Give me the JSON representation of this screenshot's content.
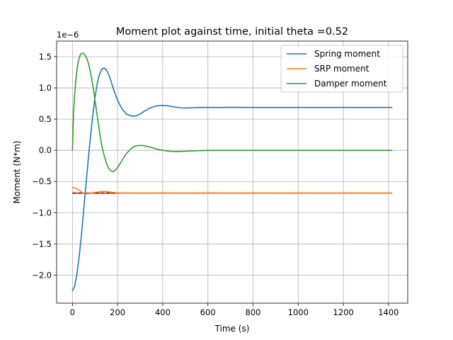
{
  "chart_data": {
    "type": "line",
    "title": "Moment plot against time, initial theta =0.52",
    "xlabel": "Time (s)",
    "ylabel": "Moment (N*m)",
    "y_offset_label": "1e−6",
    "xlim": [
      -70,
      1485
    ],
    "ylim": [
      -2.45,
      1.75
    ],
    "x_ticks": [
      0,
      200,
      400,
      600,
      800,
      1000,
      1200,
      1400
    ],
    "x_tick_labels": [
      "0",
      "200",
      "400",
      "600",
      "800",
      "1000",
      "1200",
      "1400"
    ],
    "y_ticks": [
      -2.0,
      -1.5,
      -1.0,
      -0.5,
      0.0,
      0.5,
      1.0,
      1.5
    ],
    "y_tick_labels": [
      "−2.0",
      "−1.5",
      "−1.0",
      "−0.5",
      "0.0",
      "0.5",
      "1.0",
      "1.5"
    ],
    "grid": true,
    "legend_position": "upper-right",
    "series": [
      {
        "name": "Spring moment",
        "color": "#1f77b4",
        "x": [
          0,
          10,
          20,
          30,
          40,
          50,
          60,
          70,
          80,
          90,
          100,
          110,
          120,
          130,
          140,
          150,
          160,
          170,
          180,
          190,
          200,
          220,
          240,
          260,
          280,
          300,
          320,
          340,
          360,
          380,
          400,
          420,
          440,
          460,
          480,
          500,
          520,
          540,
          560,
          580,
          600,
          650,
          700,
          800,
          900,
          1000,
          1100,
          1200,
          1300,
          1415
        ],
        "y": [
          -2.25,
          -2.18,
          -1.98,
          -1.7,
          -1.35,
          -0.95,
          -0.55,
          -0.15,
          0.22,
          0.55,
          0.85,
          1.07,
          1.22,
          1.3,
          1.32,
          1.29,
          1.22,
          1.12,
          1.0,
          0.9,
          0.8,
          0.66,
          0.58,
          0.55,
          0.55,
          0.58,
          0.63,
          0.67,
          0.7,
          0.715,
          0.72,
          0.715,
          0.7,
          0.69,
          0.68,
          0.678,
          0.68,
          0.683,
          0.685,
          0.686,
          0.686,
          0.687,
          0.688,
          0.687,
          0.686,
          0.686,
          0.686,
          0.686,
          0.686,
          0.686
        ]
      },
      {
        "name": "SRP moment",
        "color": "#ff7f0e",
        "x": [
          0,
          10,
          20,
          30,
          40,
          50,
          60,
          70,
          80,
          90,
          100,
          110,
          120,
          130,
          140,
          150,
          160,
          170,
          180,
          190,
          200,
          220,
          240,
          260,
          280,
          300,
          350,
          400,
          450,
          500,
          600,
          700,
          800,
          900,
          1000,
          1100,
          1200,
          1300,
          1415
        ],
        "y": [
          -0.6,
          -0.6,
          -0.62,
          -0.64,
          -0.67,
          -0.685,
          -0.695,
          -0.695,
          -0.69,
          -0.68,
          -0.675,
          -0.67,
          -0.665,
          -0.66,
          -0.66,
          -0.66,
          -0.665,
          -0.67,
          -0.675,
          -0.68,
          -0.682,
          -0.685,
          -0.686,
          -0.686,
          -0.686,
          -0.686,
          -0.686,
          -0.686,
          -0.686,
          -0.686,
          -0.686,
          -0.686,
          -0.686,
          -0.686,
          -0.686,
          -0.686,
          -0.686,
          -0.686,
          -0.686
        ]
      },
      {
        "name": "Damper moment",
        "color": "#2ca02c",
        "x": [
          0,
          5,
          10,
          15,
          20,
          25,
          30,
          35,
          40,
          45,
          50,
          55,
          60,
          65,
          70,
          80,
          90,
          100,
          110,
          120,
          130,
          140,
          150,
          160,
          170,
          180,
          190,
          200,
          210,
          220,
          230,
          240,
          250,
          260,
          270,
          280,
          290,
          300,
          310,
          320,
          330,
          340,
          350,
          360,
          370,
          380,
          400,
          420,
          440,
          460,
          480,
          500,
          550,
          600,
          650,
          700,
          800,
          900,
          1000,
          1100,
          1200,
          1300,
          1415
        ],
        "y": [
          0.0,
          0.6,
          0.9,
          1.12,
          1.28,
          1.4,
          1.48,
          1.53,
          1.55,
          1.555,
          1.55,
          1.53,
          1.5,
          1.46,
          1.4,
          1.25,
          1.05,
          0.8,
          0.55,
          0.3,
          0.08,
          -0.08,
          -0.2,
          -0.29,
          -0.33,
          -0.34,
          -0.32,
          -0.28,
          -0.22,
          -0.16,
          -0.1,
          -0.05,
          -0.01,
          0.03,
          0.05,
          0.07,
          0.075,
          0.078,
          0.077,
          0.072,
          0.065,
          0.055,
          0.045,
          0.035,
          0.025,
          0.015,
          0.0,
          -0.012,
          -0.018,
          -0.02,
          -0.018,
          -0.015,
          -0.008,
          -0.002,
          0.0,
          0.0,
          0.0,
          0.0,
          0.0,
          0.0,
          0.0,
          0.0,
          0.0
        ]
      }
    ],
    "reference_lines": [
      {
        "color": "#000000",
        "style": "dashed",
        "x": [
          0,
          1415
        ],
        "y": [
          -0.686,
          -0.686
        ]
      },
      {
        "color": "#ff0000",
        "style": "dashed",
        "x": [
          0,
          1415
        ],
        "y": [
          -0.686,
          -0.686
        ]
      }
    ]
  }
}
